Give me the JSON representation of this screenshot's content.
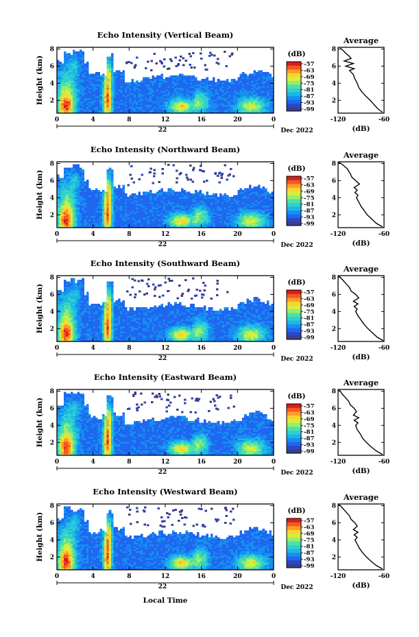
{
  "figure": {
    "xlabel": "Local Time",
    "date_label": "Dec 2022",
    "day_label": "22"
  },
  "palette": [
    "#3a3f86",
    "#2d46c8",
    "#1f66f0",
    "#1590f0",
    "#1db6e6",
    "#2fd1d0",
    "#4fe0a8",
    "#96ee6c",
    "#d6ef3c",
    "#f8d431",
    "#fb9c26",
    "#f4581f",
    "#d81d1c"
  ],
  "chart_data": [
    {
      "type": "heatmap",
      "title": "Echo Intensity (Vertical Beam)",
      "xlabel": "Local Time",
      "ylabel": "Height (km)",
      "x_ticks": [
        "0",
        "4",
        "8",
        "12",
        "16",
        "20",
        "0"
      ],
      "xlim": [
        0,
        24
      ],
      "y_ticks": [
        "2",
        "4",
        "6",
        "8"
      ],
      "ylim": [
        0.5,
        8.2
      ],
      "colorbar": {
        "label": "(dB)",
        "ticks": [
          "-57",
          "-63",
          "-69",
          "-75",
          "-81",
          "-87",
          "-93",
          "-99"
        ],
        "range": [
          -99,
          -57
        ]
      },
      "profile": {
        "title": "Average",
        "xlabel": "(dB)",
        "x_ticks": [
          "-120",
          "-60"
        ],
        "xlim": [
          -120,
          -60
        ],
        "y_ticks": [
          "2",
          "4",
          "6",
          "8"
        ],
        "ylim": [
          0.5,
          8.2
        ],
        "x": [
          -62,
          -68,
          -73,
          -78,
          -84,
          -89,
          -93,
          -95,
          -98,
          -100,
          -103,
          -105,
          -99,
          -110,
          -100,
          -112,
          -103,
          -106,
          -110,
          -113,
          -117
        ],
        "y": [
          0.6,
          1.0,
          1.5,
          2.0,
          2.5,
          3.0,
          3.5,
          4.0,
          4.5,
          5.0,
          5.3,
          5.5,
          5.7,
          6.0,
          6.3,
          6.6,
          6.9,
          7.2,
          7.5,
          7.8,
          8.1
        ]
      }
    },
    {
      "type": "heatmap",
      "title": "Echo Intensity (Northward Beam)",
      "xlabel": "Local Time",
      "ylabel": "Height (km)",
      "x_ticks": [
        "0",
        "4",
        "8",
        "12",
        "16",
        "20",
        "0"
      ],
      "xlim": [
        0,
        24
      ],
      "y_ticks": [
        "2",
        "4",
        "6",
        "8"
      ],
      "ylim": [
        0.5,
        8.2
      ],
      "colorbar": {
        "label": "(dB)",
        "ticks": [
          "-57",
          "-63",
          "-69",
          "-75",
          "-81",
          "-87",
          "-93",
          "-99"
        ],
        "range": [
          -99,
          -57
        ]
      },
      "profile": {
        "title": "Average",
        "xlabel": "(dB)",
        "x_ticks": [
          "-120",
          "-60"
        ],
        "xlim": [
          -120,
          -60
        ],
        "y_ticks": [
          "2",
          "4",
          "6",
          "8"
        ],
        "ylim": [
          0.5,
          8.2
        ],
        "x": [
          -62,
          -70,
          -76,
          -82,
          -86,
          -90,
          -93,
          -96,
          -94,
          -98,
          -95,
          -99,
          -92,
          -97,
          -102,
          -104,
          -106,
          -108,
          -112,
          -116,
          -119
        ],
        "y": [
          0.6,
          1.0,
          1.5,
          2.0,
          2.5,
          3.0,
          3.5,
          4.0,
          4.3,
          4.6,
          4.9,
          5.2,
          5.6,
          6.0,
          6.4,
          6.8,
          7.1,
          7.4,
          7.7,
          8.0,
          8.1
        ]
      }
    },
    {
      "type": "heatmap",
      "title": "Echo Intensity (Southward Beam)",
      "xlabel": "Local Time",
      "ylabel": "Height (km)",
      "x_ticks": [
        "0",
        "4",
        "8",
        "12",
        "16",
        "20",
        "0"
      ],
      "xlim": [
        0,
        24
      ],
      "y_ticks": [
        "2",
        "4",
        "6",
        "8"
      ],
      "ylim": [
        0.5,
        8.2
      ],
      "colorbar": {
        "label": "(dB)",
        "ticks": [
          "-57",
          "-63",
          "-69",
          "-75",
          "-81",
          "-87",
          "-93",
          "-99"
        ],
        "range": [
          -99,
          -57
        ]
      },
      "profile": {
        "title": "Average",
        "xlabel": "(dB)",
        "x_ticks": [
          "-120",
          "-60"
        ],
        "xlim": [
          -120,
          -60
        ],
        "y_ticks": [
          "2",
          "4",
          "6",
          "8"
        ],
        "ylim": [
          0.5,
          8.2
        ],
        "x": [
          -61,
          -69,
          -75,
          -81,
          -86,
          -90,
          -94,
          -97,
          -95,
          -99,
          -94,
          -100,
          -93,
          -97,
          -103,
          -105,
          -108,
          -111,
          -114,
          -117,
          -119
        ],
        "y": [
          0.6,
          1.0,
          1.5,
          2.0,
          2.5,
          3.0,
          3.5,
          4.0,
          4.3,
          4.6,
          4.9,
          5.2,
          5.6,
          6.0,
          6.4,
          6.8,
          7.1,
          7.4,
          7.7,
          8.0,
          8.1
        ]
      }
    },
    {
      "type": "heatmap",
      "title": "Echo Intensity (Eastward Beam)",
      "xlabel": "Local Time",
      "ylabel": "Height (km)",
      "x_ticks": [
        "0",
        "4",
        "8",
        "12",
        "16",
        "20",
        "0"
      ],
      "xlim": [
        0,
        24
      ],
      "y_ticks": [
        "2",
        "4",
        "6",
        "8"
      ],
      "ylim": [
        0.5,
        8.2
      ],
      "colorbar": {
        "label": "(dB)",
        "ticks": [
          "-57",
          "-63",
          "-69",
          "-75",
          "-81",
          "-87",
          "-93",
          "-99"
        ],
        "range": [
          -99,
          -57
        ]
      },
      "profile": {
        "title": "Average",
        "xlabel": "(dB)",
        "x_ticks": [
          "-120",
          "-60"
        ],
        "xlim": [
          -120,
          -60
        ],
        "y_ticks": [
          "2",
          "4",
          "6",
          "8"
        ],
        "ylim": [
          0.5,
          8.2
        ],
        "x": [
          -62,
          -70,
          -77,
          -83,
          -88,
          -91,
          -95,
          -97,
          -94,
          -99,
          -93,
          -100,
          -96,
          -99,
          -104,
          -106,
          -109,
          -112,
          -115,
          -117,
          -119
        ],
        "y": [
          0.6,
          1.0,
          1.5,
          2.0,
          2.5,
          3.0,
          3.5,
          4.0,
          4.3,
          4.6,
          4.9,
          5.2,
          5.6,
          6.0,
          6.4,
          6.8,
          7.1,
          7.4,
          7.7,
          8.0,
          8.1
        ]
      }
    },
    {
      "type": "heatmap",
      "title": "Echo Intensity (Westward Beam)",
      "xlabel": "Local Time",
      "ylabel": "Height (km)",
      "x_ticks": [
        "0",
        "4",
        "8",
        "12",
        "16",
        "20",
        "0"
      ],
      "xlim": [
        0,
        24
      ],
      "y_ticks": [
        "2",
        "4",
        "6",
        "8"
      ],
      "ylim": [
        0.5,
        8.2
      ],
      "colorbar": {
        "label": "(dB)",
        "ticks": [
          "-57",
          "-63",
          "-69",
          "-75",
          "-81",
          "-87",
          "-93",
          "-99"
        ],
        "range": [
          -99,
          -57
        ]
      },
      "profile": {
        "title": "Average",
        "xlabel": "(dB)",
        "x_ticks": [
          "-120",
          "-60"
        ],
        "xlim": [
          -120,
          -60
        ],
        "y_ticks": [
          "2",
          "4",
          "6",
          "8"
        ],
        "ylim": [
          0.5,
          8.2
        ],
        "x": [
          -62,
          -70,
          -77,
          -83,
          -88,
          -92,
          -95,
          -98,
          -95,
          -99,
          -94,
          -100,
          -95,
          -98,
          -103,
          -105,
          -108,
          -111,
          -114,
          -117,
          -119
        ],
        "y": [
          0.6,
          1.0,
          1.5,
          2.0,
          2.5,
          3.0,
          3.5,
          4.0,
          4.3,
          4.6,
          4.9,
          5.2,
          5.6,
          6.0,
          6.4,
          6.8,
          7.1,
          7.4,
          7.7,
          8.0,
          8.1
        ]
      }
    }
  ]
}
